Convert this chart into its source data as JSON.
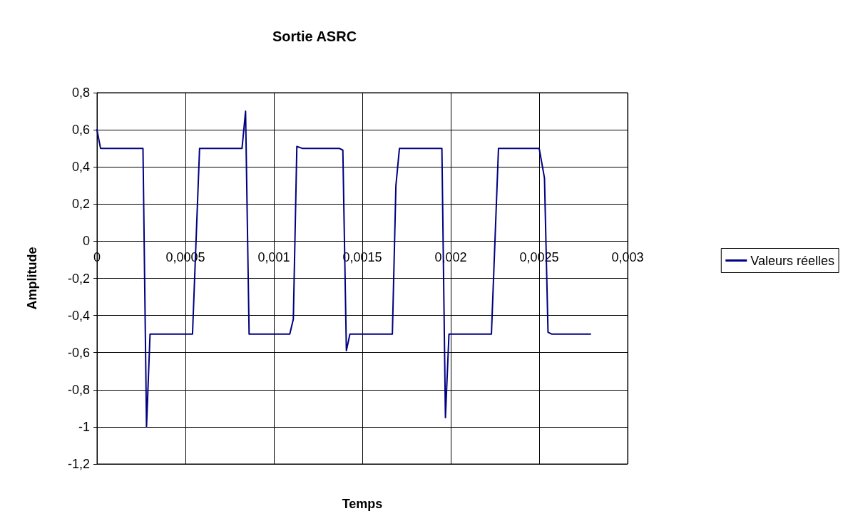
{
  "chart_data": {
    "type": "line",
    "title": "Sortie ASRC",
    "xlabel": "Temps",
    "ylabel": "Amplitude",
    "x": [
      0,
      2e-05,
      0.00026,
      0.00028,
      0.0003,
      0.00054,
      0.00058,
      0.00082,
      0.00084,
      0.00086,
      0.00109,
      0.00111,
      0.00113,
      0.00116,
      0.00137,
      0.00139,
      0.00141,
      0.00143,
      0.00167,
      0.00169,
      0.00171,
      0.00195,
      0.00197,
      0.00199,
      0.00223,
      0.00227,
      0.0025,
      0.00253,
      0.00255,
      0.00257,
      0.00279
    ],
    "series": [
      {
        "name": "Valeurs réelles",
        "color": "#000080",
        "values": [
          0.6,
          0.5,
          0.5,
          -1,
          -0.5,
          -0.5,
          0.5,
          0.5,
          0.7,
          -0.5,
          -0.5,
          -0.42,
          0.51,
          0.5,
          0.5,
          0.49,
          -0.59,
          -0.5,
          -0.5,
          0.3,
          0.5,
          0.5,
          -0.95,
          -0.5,
          -0.5,
          0.5,
          0.5,
          0.34,
          -0.49,
          -0.5,
          -0.5
        ]
      }
    ],
    "xlim": [
      0,
      0.003
    ],
    "xticks": [
      {
        "value": 0,
        "label": "0"
      },
      {
        "value": 0.0005,
        "label": "0,0005"
      },
      {
        "value": 0.001,
        "label": "0,001"
      },
      {
        "value": 0.0015,
        "label": "0,0015"
      },
      {
        "value": 0.002,
        "label": "0,002"
      },
      {
        "value": 0.0025,
        "label": "0,0025"
      },
      {
        "value": 0.003,
        "label": "0,003"
      }
    ],
    "ylim": [
      -1.2,
      0.8
    ],
    "yticks": [
      {
        "value": -1.2,
        "label": "-1,2"
      },
      {
        "value": -1,
        "label": "-1"
      },
      {
        "value": -0.8,
        "label": "-0,8"
      },
      {
        "value": -0.6,
        "label": "-0,6"
      },
      {
        "value": -0.4,
        "label": "-0,4"
      },
      {
        "value": -0.2,
        "label": "-0,2"
      },
      {
        "value": 0,
        "label": "0"
      },
      {
        "value": 0.2,
        "label": "0,2"
      },
      {
        "value": 0.4,
        "label": "0,4"
      },
      {
        "value": 0.6,
        "label": "0,6"
      },
      {
        "value": 0.8,
        "label": "0,8"
      }
    ],
    "grid": true,
    "legend": "right",
    "marker": "none",
    "line_style": "solid"
  }
}
